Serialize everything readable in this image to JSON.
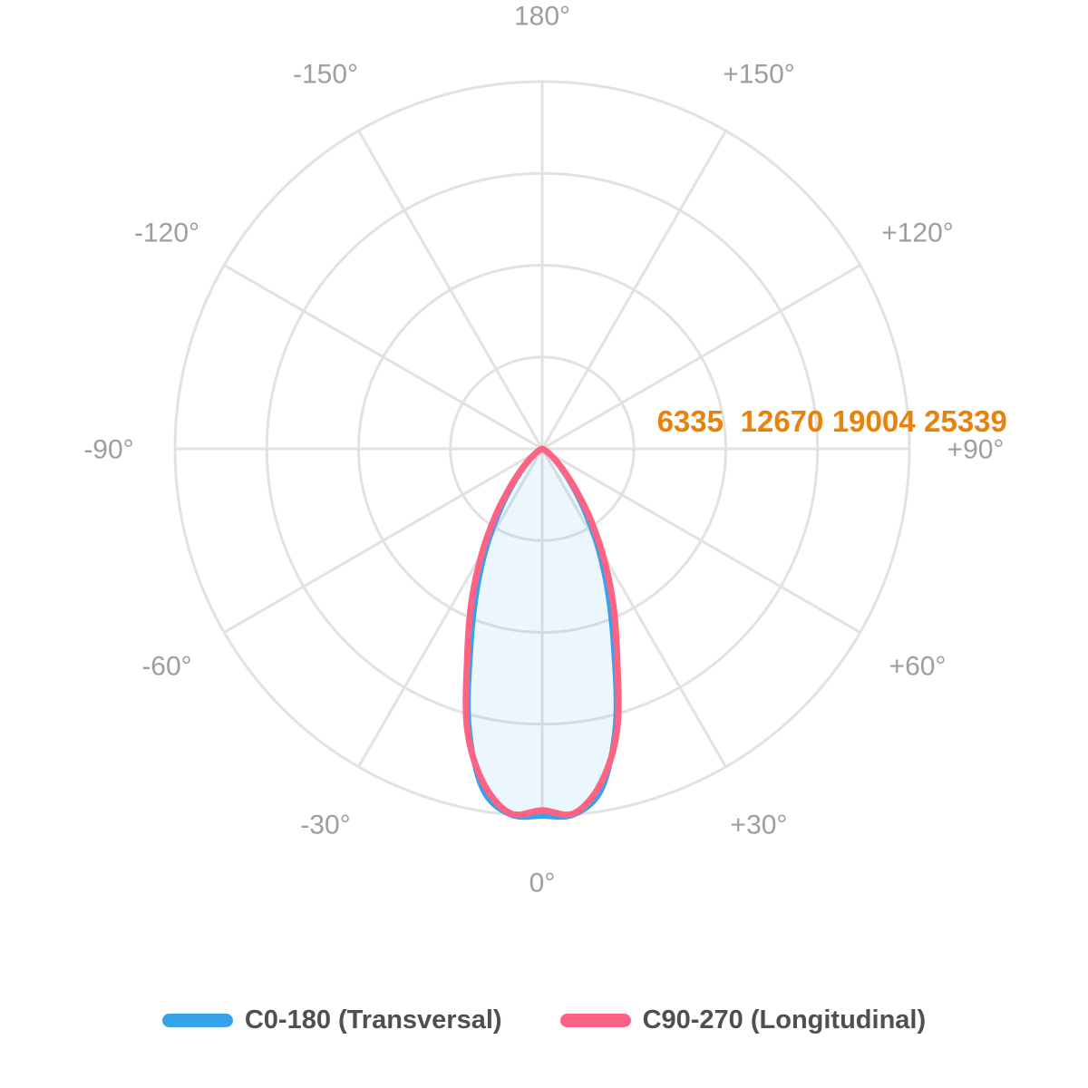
{
  "page": {
    "background": "#FFFFFF"
  },
  "chart_data": {
    "type": "polar",
    "subtype": "photometric_intensity_distribution",
    "title": "",
    "grid": {
      "show": true,
      "color": "#E2E2E2",
      "line_width": 3,
      "spoke_step_deg": 30
    },
    "radial_axis": {
      "unit": "cd",
      "max": 25339,
      "ticks": [
        6335,
        12670,
        19004,
        25339
      ],
      "tick_labels": [
        "6335",
        "12670",
        "19004",
        "25339"
      ],
      "tick_label_color": "#E8820C"
    },
    "angular_axis": {
      "zero_position": "bottom",
      "label_color": "#9E9E9E",
      "labels": [
        {
          "angle": 0,
          "label": "0°"
        },
        {
          "angle": 30,
          "label": "+30°"
        },
        {
          "angle": 60,
          "label": "+60°"
        },
        {
          "angle": 90,
          "label": "+90°"
        },
        {
          "angle": 120,
          "label": "+120°"
        },
        {
          "angle": 150,
          "label": "+150°"
        },
        {
          "angle": 180,
          "label": "180°"
        },
        {
          "angle": -150,
          "label": "-150°"
        },
        {
          "angle": -120,
          "label": "-120°"
        },
        {
          "angle": -90,
          "label": "-90°"
        },
        {
          "angle": -60,
          "label": "-60°"
        },
        {
          "angle": -30,
          "label": "-30°"
        }
      ]
    },
    "series": [
      {
        "id": "c0-180",
        "name": "C0-180 (Transversal)",
        "color": "#36A2EB",
        "fill_color": "rgba(54,162,235,0.10)",
        "line_width": 6,
        "symmetric_mirror": true,
        "angles_deg": [
          0,
          5,
          10,
          15,
          20,
          25,
          30,
          35,
          40,
          45,
          50,
          55,
          60,
          65,
          70,
          75,
          80,
          85,
          90
        ],
        "values_cd": [
          25339,
          25339,
          23800,
          19600,
          14400,
          10600,
          7500,
          4900,
          3000,
          1750,
          950,
          500,
          250,
          120,
          60,
          25,
          10,
          3,
          0
        ]
      },
      {
        "id": "c90-270",
        "name": "C90-270 (Longitudinal)",
        "color": "#FF6384",
        "fill_color": "none",
        "line_width": 7,
        "symmetric_mirror": true,
        "angles_deg": [
          0,
          5,
          10,
          15,
          20,
          25,
          30,
          35,
          40,
          45,
          50,
          55,
          60,
          65,
          70,
          75,
          80,
          85,
          90
        ],
        "values_cd": [
          24950,
          25250,
          23400,
          20000,
          15100,
          11500,
          8300,
          5600,
          3450,
          2050,
          1150,
          620,
          320,
          160,
          80,
          35,
          14,
          4,
          0
        ]
      }
    ],
    "legend_position": "bottom"
  },
  "legend": {
    "text_color": "#4F4F4F",
    "items": [
      {
        "label": "C0-180 (Transversal)",
        "color": "#36A2EB"
      },
      {
        "label": "C90-270 (Longitudinal)",
        "color": "#FF6384"
      }
    ]
  }
}
